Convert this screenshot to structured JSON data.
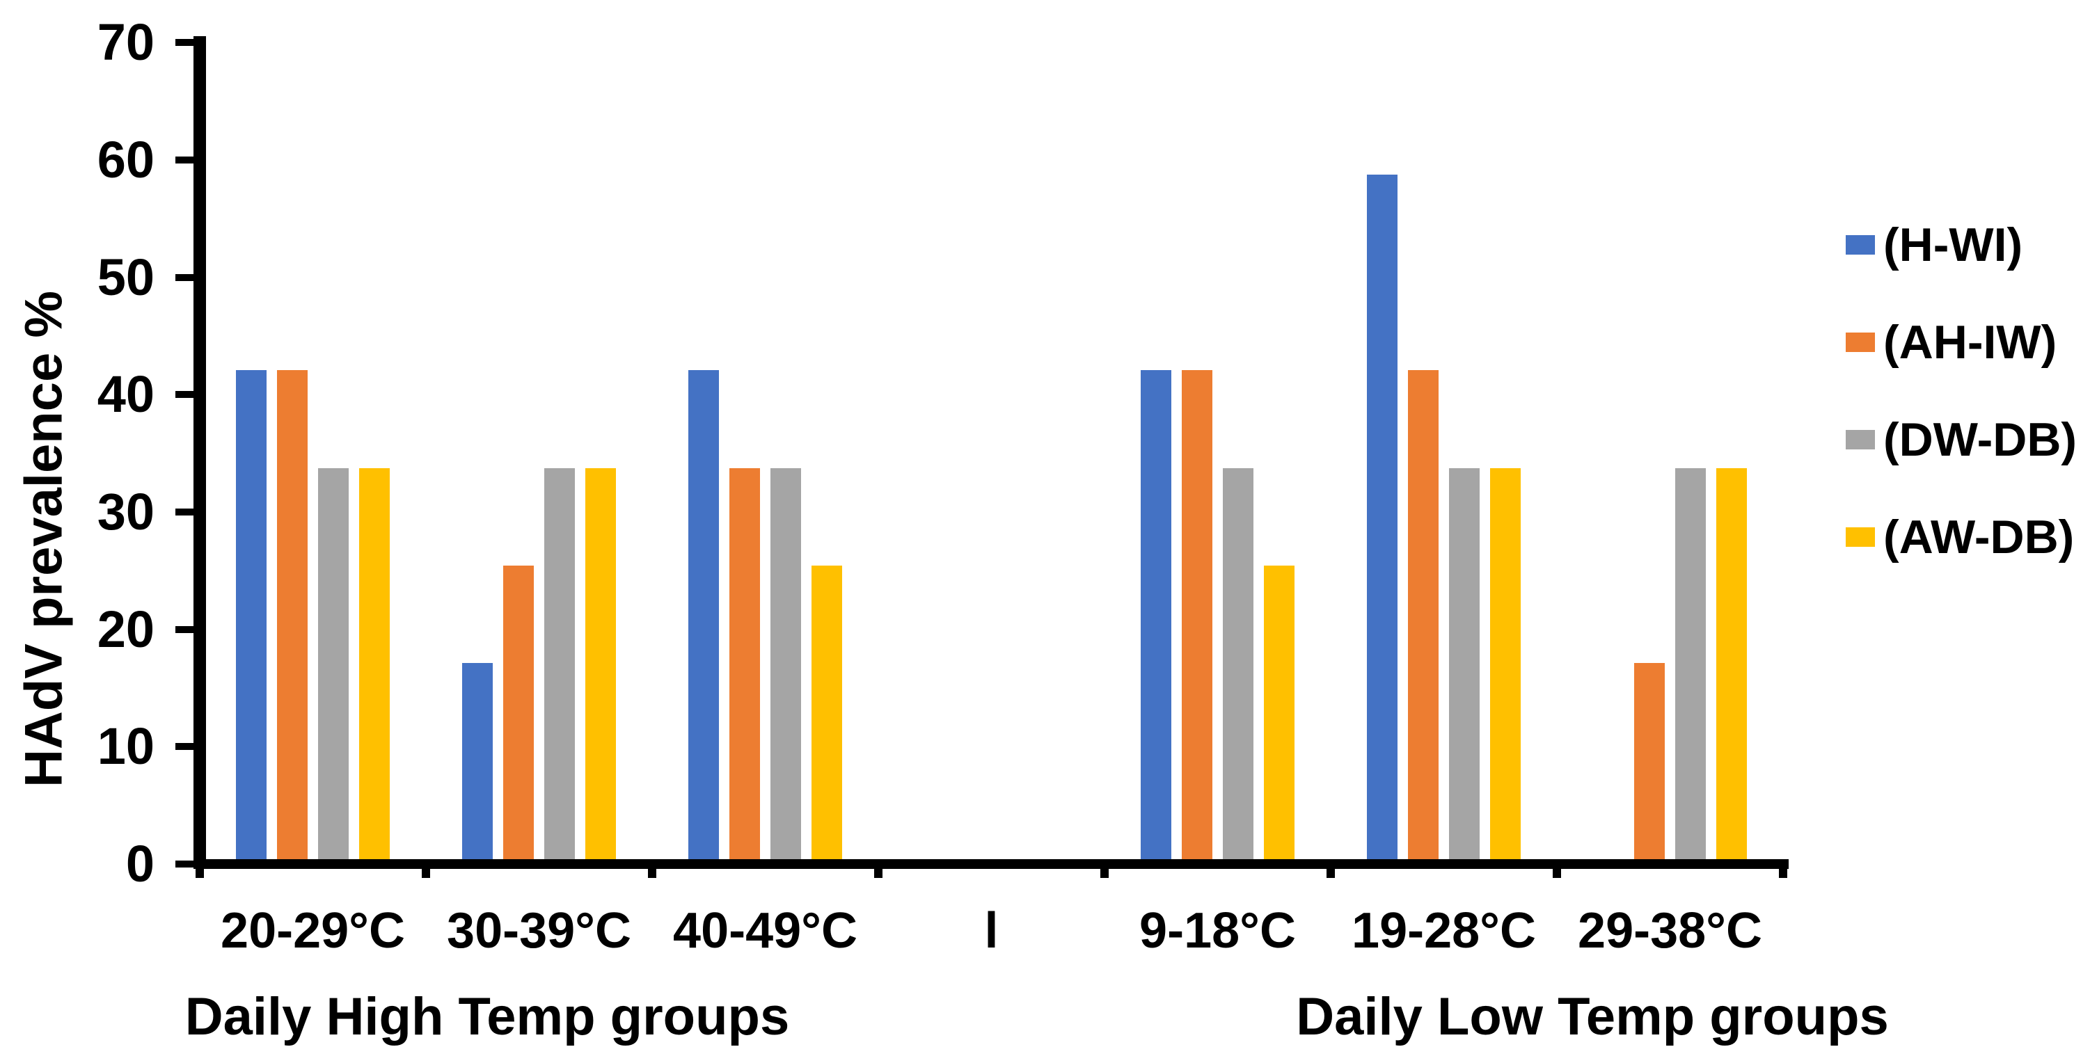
{
  "chart_data": {
    "type": "bar",
    "title": "",
    "ylabel": "HAdV prevalence %",
    "xlabel_left_section": "Daily High Temp groups",
    "xlabel_right_section": "Daily Low Temp groups",
    "ylim": [
      0,
      70
    ],
    "yticks": [
      0,
      10,
      20,
      30,
      40,
      50,
      60,
      70
    ],
    "grid": false,
    "legend_position": "right",
    "categories": [
      "20-29°C",
      "30-39°C",
      "40-49°C",
      "l",
      "9-18°C",
      "19-28°C",
      "29-38°C"
    ],
    "separator_category_index": 3,
    "series": [
      {
        "name": "(H-WI)",
        "color": "#4472C4",
        "values": [
          41.7,
          16.7,
          41.7,
          null,
          41.7,
          58.3,
          null
        ]
      },
      {
        "name": "(AH-IW)",
        "color": "#ED7D31",
        "values": [
          41.7,
          25,
          33.3,
          null,
          41.7,
          41.7,
          16.7
        ]
      },
      {
        "name": "(DW-DB)",
        "color": "#A5A5A5",
        "values": [
          33.3,
          33.3,
          33.3,
          null,
          33.3,
          33.3,
          33.3
        ]
      },
      {
        "name": "(AW-DB)",
        "color": "#FFC000",
        "values": [
          33.3,
          33.3,
          25,
          null,
          25,
          33.3,
          33.3
        ]
      }
    ],
    "axis_color": "#000000",
    "background_color": "#FFFFFF"
  }
}
